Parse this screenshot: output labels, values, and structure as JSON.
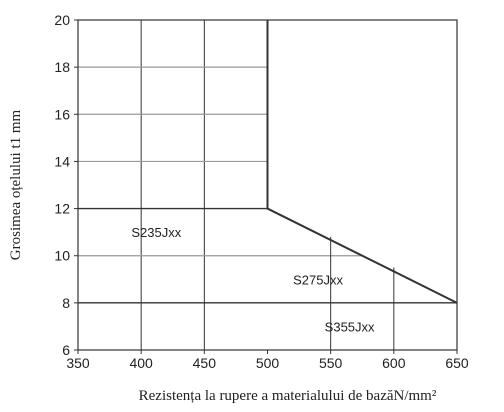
{
  "chart_data": {
    "type": "area",
    "xlabel": "Rezistența la rupere a materialului de bazăN/mm²",
    "ylabel": "Grosimea oțelului t1 mm",
    "xlim": [
      350,
      650
    ],
    "ylim": [
      6,
      20
    ],
    "x_ticks": [
      350,
      400,
      450,
      500,
      550,
      600,
      650
    ],
    "y_ticks": [
      6,
      8,
      10,
      12,
      14,
      16,
      18,
      20
    ],
    "grid": true,
    "boundaries": [
      {
        "name": "upper",
        "points": [
          [
            500,
            20
          ],
          [
            500,
            12
          ],
          [
            650,
            8
          ]
        ]
      },
      {
        "name": "S235/S275",
        "points": [
          [
            350,
            12
          ],
          [
            500,
            12
          ]
        ]
      },
      {
        "name": "S275/S355",
        "points": [
          [
            350,
            8
          ],
          [
            650,
            8
          ]
        ]
      }
    ],
    "extra_verticals": [
      {
        "x": 550,
        "y_top": 10.8
      },
      {
        "x": 600,
        "y_top": 9.5
      }
    ],
    "light_gridlines_y": [
      10,
      14,
      16,
      18
    ],
    "regions": [
      {
        "label": "S235Jxx",
        "x": 412,
        "y": 11
      },
      {
        "label": "S275Jxx",
        "x": 540,
        "y": 9
      },
      {
        "label": "S355Jxx",
        "x": 565,
        "y": 7
      }
    ]
  }
}
